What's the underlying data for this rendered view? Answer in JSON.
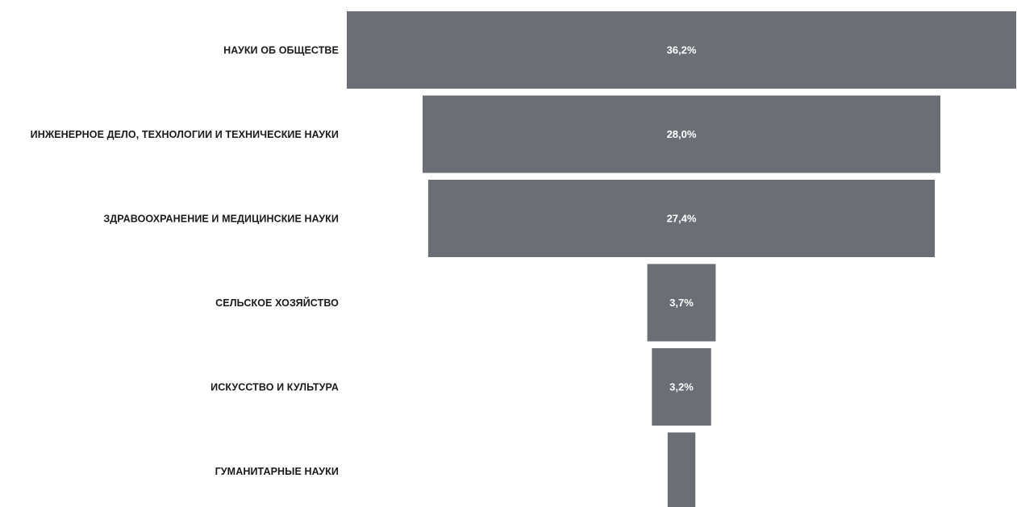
{
  "chart_data": {
    "type": "bar",
    "orientation": "horizontal-funnel",
    "categories": [
      "НАУКИ ОБ ОБЩЕСТВЕ",
      "ИНЖЕНЕРНОЕ ДЕЛО, ТЕХНОЛОГИИ И ТЕХНИЧЕСКИЕ НАУКИ",
      "ЗДРАВООХРАНЕНИЕ И МЕДИЦИНСКИЕ НАУКИ",
      "СЕЛЬСКОЕ ХОЗЯЙСТВО",
      "ИСКУССТВО И КУЛЬТУРА",
      "ГУМАНИТАРНЫЕ НАУКИ"
    ],
    "values": [
      36.2,
      28.0,
      27.4,
      3.7,
      3.2,
      1.5
    ],
    "value_labels": [
      "36,2%",
      "28,0%",
      "27,4%",
      "3,7%",
      "3,2%",
      ""
    ],
    "unit": "%",
    "bar_color": "#6b6e75",
    "grid": false,
    "legend": "none"
  }
}
